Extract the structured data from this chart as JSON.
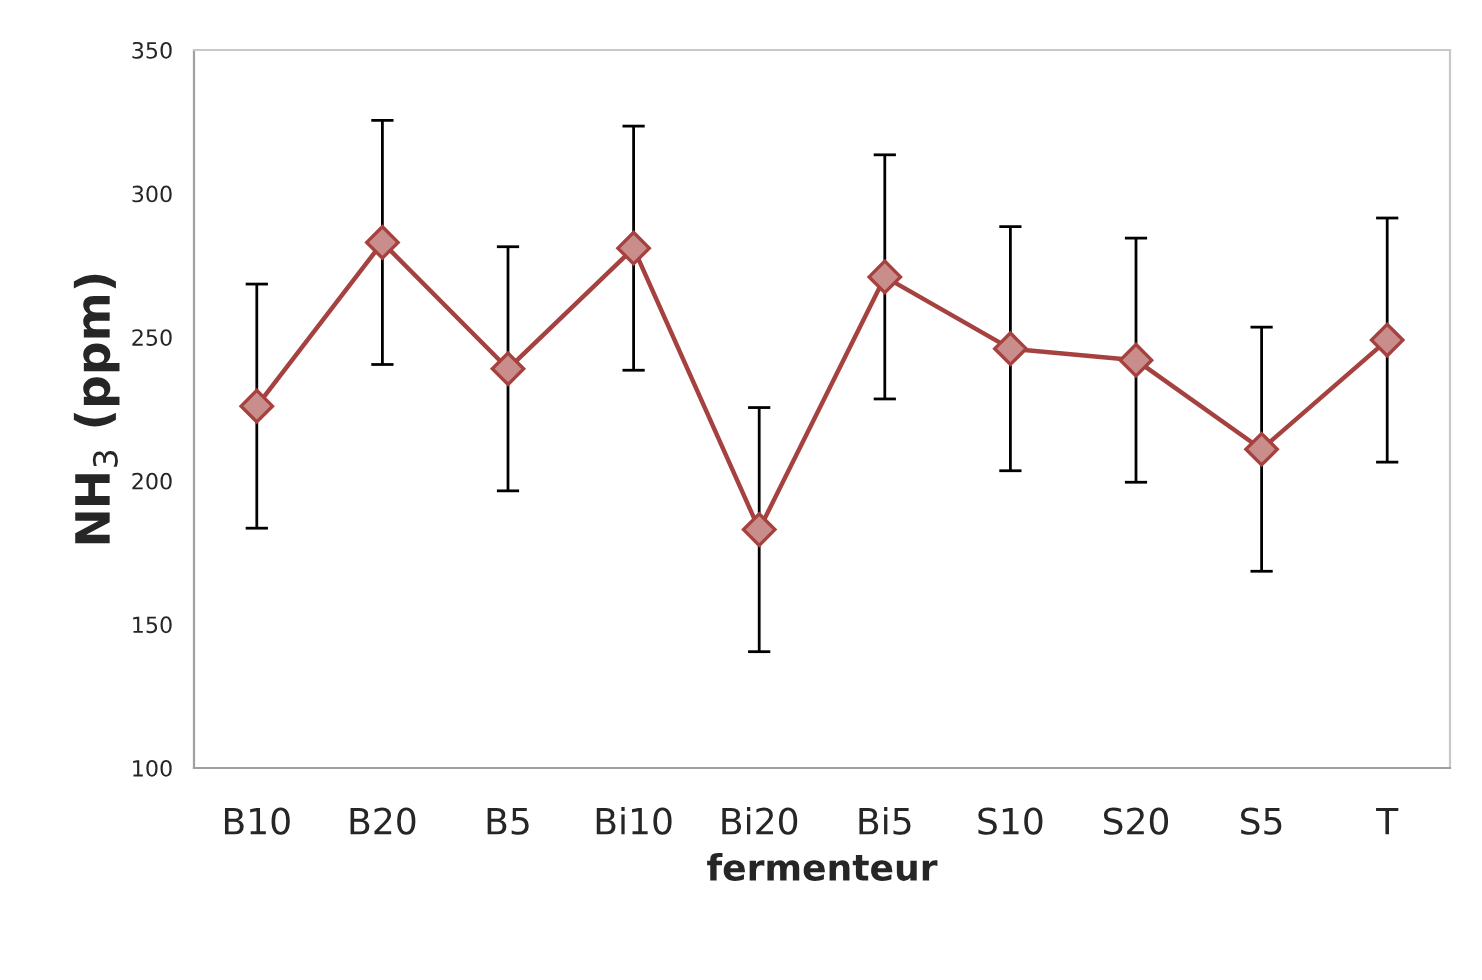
{
  "chart_data": {
    "type": "line",
    "xlabel": "fermenteur",
    "ylabel": "NH$_{3}$ (ppm)",
    "categories": [
      "B10",
      "B20",
      "B5",
      "Bi10",
      "Bi20",
      "Bi5",
      "S10",
      "S20",
      "S5",
      "T"
    ],
    "series": [
      {
        "color": "#a5413f",
        "values": [
          226,
          283,
          239,
          281,
          183,
          271,
          246,
          242,
          211,
          249
        ],
        "errors": [
          42.5,
          42.5,
          42.5,
          42.5,
          42.5,
          42.5,
          42.5,
          42.5,
          42.5,
          42.5
        ]
      }
    ],
    "ylim": [
      100,
      350
    ],
    "yticks": [
      100,
      150,
      200,
      250,
      300,
      350
    ],
    "marker": "diamond",
    "line_style": "solid",
    "grid": false,
    "legend": false
  }
}
